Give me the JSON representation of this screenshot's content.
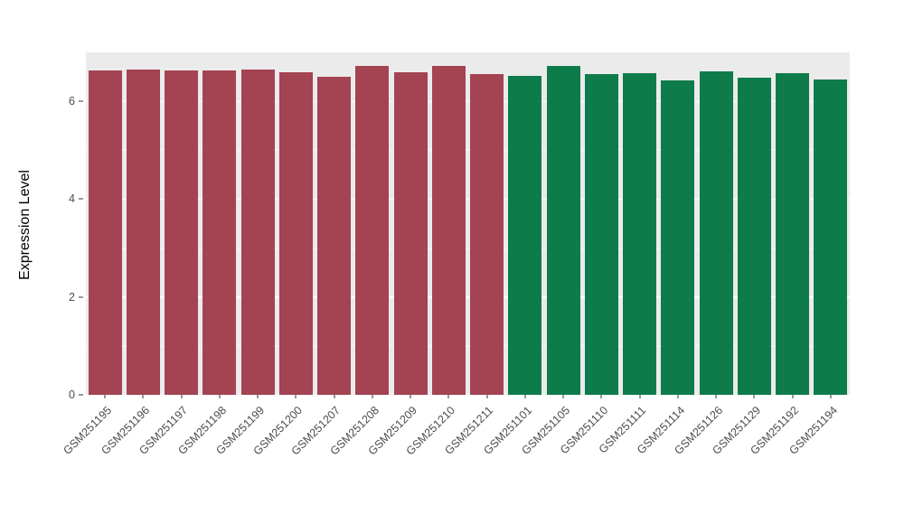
{
  "chart_data": {
    "type": "bar",
    "title": "",
    "xlabel": "",
    "ylabel": "Expression Level",
    "ylim": [
      0,
      7
    ],
    "yticks": [
      0,
      2,
      4,
      6
    ],
    "grid_minor": [
      1,
      3,
      5
    ],
    "grid": true,
    "legend_position": "none",
    "panel_background": "#EBEBEB",
    "gridline_color": "#FFFFFF",
    "x_label_angle": 45,
    "bar_width_frac": 0.88,
    "categories": [
      "GSM251195",
      "GSM251196",
      "GSM251197",
      "GSM251198",
      "GSM251199",
      "GSM251200",
      "GSM251207",
      "GSM251208",
      "GSM251209",
      "GSM251210",
      "GSM251211",
      "GSM251101",
      "GSM251105",
      "GSM251110",
      "GSM251111",
      "GSM251114",
      "GSM251126",
      "GSM251129",
      "GSM251192",
      "GSM251194"
    ],
    "values": [
      6.63,
      6.65,
      6.64,
      6.63,
      6.65,
      6.6,
      6.5,
      6.73,
      6.6,
      6.73,
      6.55,
      6.52,
      6.73,
      6.56,
      6.58,
      6.43,
      6.61,
      6.48,
      6.58,
      6.45
    ],
    "bar_colors": [
      "#A44352",
      "#A44352",
      "#A44352",
      "#A44352",
      "#A44352",
      "#A44352",
      "#A44352",
      "#A44352",
      "#A44352",
      "#A44352",
      "#A44352",
      "#0E7B4B",
      "#0E7B4B",
      "#0E7B4B",
      "#0E7B4B",
      "#0E7B4B",
      "#0E7B4B",
      "#0E7B4B",
      "#0E7B4B",
      "#0E7B4B"
    ],
    "group_colors": {
      "left-group": "#A44352",
      "right-group": "#0E7B4B"
    },
    "axis_text_color": "#4D4D4D"
  }
}
